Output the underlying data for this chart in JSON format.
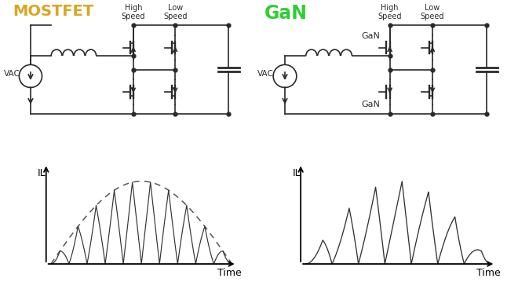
{
  "bg_color": "#ffffff",
  "mostfet_color": "#DAA520",
  "gan_color": "#32CD32",
  "circuit_color": "#2a2a2a",
  "title_mostfet": "MOSTFET",
  "title_gan": "GaN",
  "high_speed_label": "High\nSpeed",
  "low_speed_label": "Low\nSpeed",
  "vac_label": "VAC",
  "il_label": "IL",
  "time_label": "Time",
  "gan_label_top": "GaN",
  "gan_label_bot": "GaN"
}
